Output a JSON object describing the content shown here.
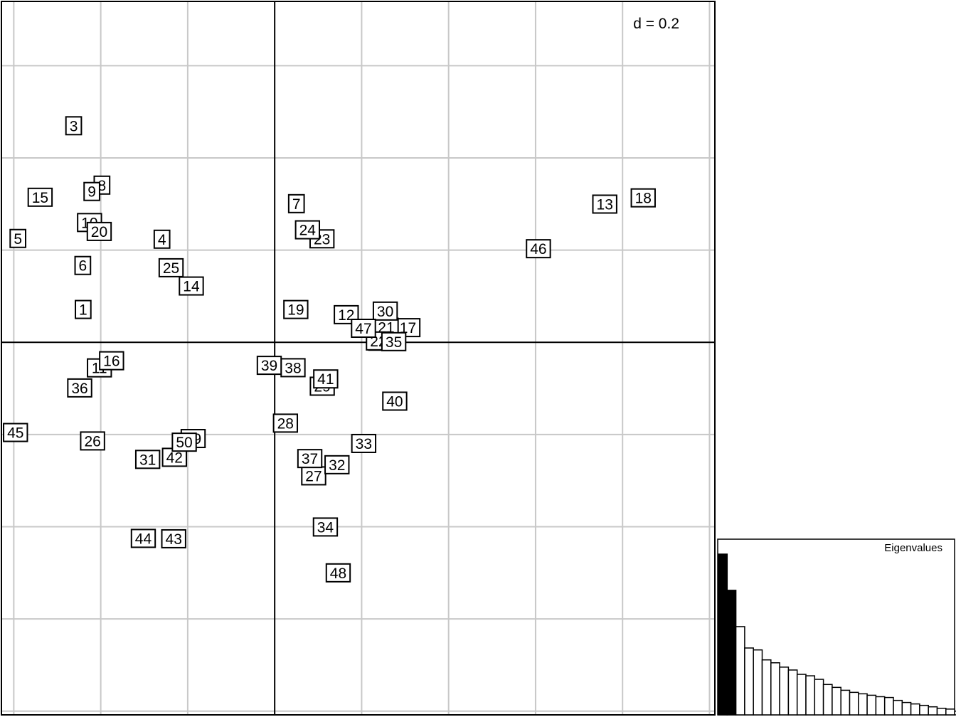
{
  "chart_data": [
    {
      "type": "scatter",
      "point_style": "boxed-labels",
      "scale_label": "d = 0.2",
      "grid_step": 0.2,
      "xlim": [
        -0.6284,
        1.0123
      ],
      "ylim": [
        -0.8081,
        0.7395
      ],
      "grid": true,
      "points": [
        {
          "label": "1",
          "x": -0.4405,
          "y": 0.0713
        },
        {
          "label": "2",
          "x": 0.2346,
          "y": 0.0024
        },
        {
          "label": "3",
          "x": -0.4623,
          "y": 0.4698
        },
        {
          "label": "4",
          "x": -0.2592,
          "y": 0.2237
        },
        {
          "label": "5",
          "x": -0.5905,
          "y": 0.2253
        },
        {
          "label": "6",
          "x": -0.4413,
          "y": 0.1667
        },
        {
          "label": "7",
          "x": 0.05,
          "y": 0.3008
        },
        {
          "label": "8",
          "x": -0.3972,
          "y": 0.341
        },
        {
          "label": "9",
          "x": -0.4205,
          "y": 0.3272
        },
        {
          "label": "10",
          "x": -0.4258,
          "y": 0.2599
        },
        {
          "label": "11",
          "x": -0.4031,
          "y": -0.0554
        },
        {
          "label": "12",
          "x": 0.1646,
          "y": 0.06
        },
        {
          "label": "13",
          "x": 0.7591,
          "y": 0.2998
        },
        {
          "label": "14",
          "x": -0.1917,
          "y": 0.1222
        },
        {
          "label": "15",
          "x": -0.5394,
          "y": 0.3147
        },
        {
          "label": "16",
          "x": -0.3751,
          "y": -0.0399
        },
        {
          "label": "17",
          "x": 0.3064,
          "y": 0.0319
        },
        {
          "label": "18",
          "x": 0.8475,
          "y": 0.3134
        },
        {
          "label": "19",
          "x": 0.0486,
          "y": 0.0712
        },
        {
          "label": "20",
          "x": -0.4035,
          "y": 0.2405
        },
        {
          "label": "21",
          "x": 0.2565,
          "y": 0.0328
        },
        {
          "label": "22",
          "x": 0.2385,
          "y": 0.003
        },
        {
          "label": "23",
          "x": 0.1088,
          "y": 0.2245
        },
        {
          "label": "24",
          "x": 0.0755,
          "y": 0.2441
        },
        {
          "label": "25",
          "x": -0.2382,
          "y": 0.1618
        },
        {
          "label": "26",
          "x": -0.4188,
          "y": -0.2139
        },
        {
          "label": "27",
          "x": 0.0897,
          "y": -0.2896
        },
        {
          "label": "28",
          "x": 0.0248,
          "y": -0.1753
        },
        {
          "label": "29",
          "x": 0.1095,
          "y": -0.0952
        },
        {
          "label": "30",
          "x": 0.2543,
          "y": 0.0678
        },
        {
          "label": "31",
          "x": -0.292,
          "y": -0.2539
        },
        {
          "label": "32",
          "x": 0.1433,
          "y": -0.2655
        },
        {
          "label": "33",
          "x": 0.2048,
          "y": -0.2194
        },
        {
          "label": "34",
          "x": 0.1166,
          "y": -0.4006
        },
        {
          "label": "35",
          "x": 0.2739,
          "y": 0.0015
        },
        {
          "label": "36",
          "x": -0.4484,
          "y": -0.0989
        },
        {
          "label": "37",
          "x": 0.0808,
          "y": -0.2521
        },
        {
          "label": "38",
          "x": 0.0422,
          "y": -0.055
        },
        {
          "label": "39",
          "x": -0.0125,
          "y": -0.0499
        },
        {
          "label": "40",
          "x": 0.2761,
          "y": -0.1276
        },
        {
          "label": "41",
          "x": 0.1173,
          "y": -0.0794
        },
        {
          "label": "42",
          "x": -0.2304,
          "y": -0.2494
        },
        {
          "label": "43",
          "x": -0.2322,
          "y": -0.4261
        },
        {
          "label": "44",
          "x": -0.3021,
          "y": -0.4253
        },
        {
          "label": "45",
          "x": -0.5961,
          "y": -0.1956
        },
        {
          "label": "46",
          "x": 0.6065,
          "y": 0.2031
        },
        {
          "label": "47",
          "x": 0.2042,
          "y": 0.0305
        },
        {
          "label": "48",
          "x": 0.1461,
          "y": -0.5
        },
        {
          "label": "49",
          "x": -0.1875,
          "y": -0.2087
        },
        {
          "label": "50",
          "x": -0.2079,
          "y": -0.2166
        }
      ]
    },
    {
      "type": "bar",
      "title": "Eigenvalues",
      "highlight_first": 2,
      "values": [
        1.0,
        0.775,
        0.549,
        0.416,
        0.404,
        0.342,
        0.324,
        0.297,
        0.279,
        0.252,
        0.243,
        0.221,
        0.189,
        0.171,
        0.153,
        0.14,
        0.131,
        0.122,
        0.113,
        0.108,
        0.09,
        0.077,
        0.068,
        0.059,
        0.05,
        0.041,
        0.036,
        0.023,
        0.014,
        0.009,
        0.005,
        0.002,
        0.0
      ]
    }
  ]
}
